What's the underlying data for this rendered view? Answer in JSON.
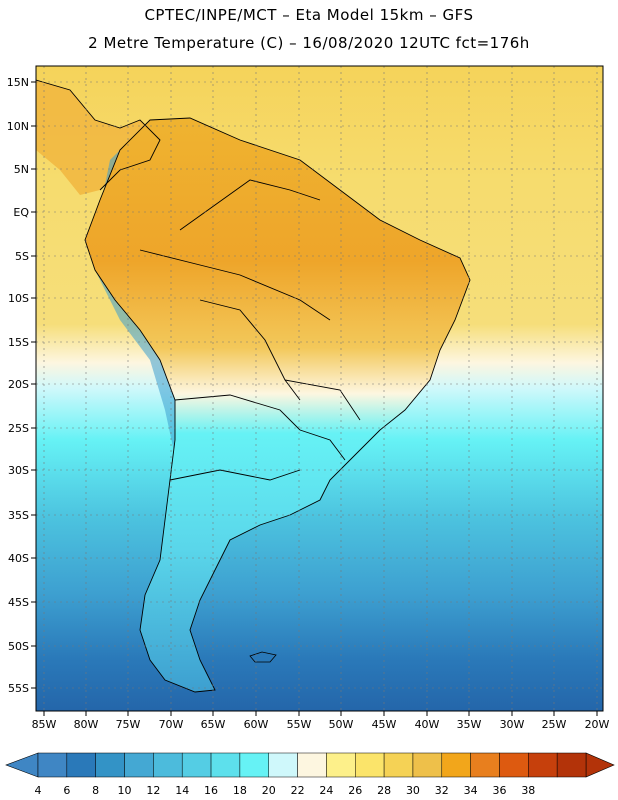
{
  "header": {
    "line1": "CPTEC/INPE/MCT –  Eta Model 15km – GFS",
    "line2": "2 Metre Temperature (C) – 16/08/2020 12UTC fct=176h"
  },
  "map": {
    "lat_labels": [
      "15N",
      "10N",
      "5N",
      "EQ",
      "5S",
      "10S",
      "15S",
      "20S",
      "25S",
      "30S",
      "35S",
      "40S",
      "45S",
      "50S",
      "55S"
    ],
    "lon_labels": [
      "85W",
      "80W",
      "75W",
      "70W",
      "65W",
      "60W",
      "55W",
      "50W",
      "45W",
      "40W",
      "35W",
      "30W",
      "25W",
      "20W"
    ],
    "ocean_color": "#4fd7e6",
    "land_color": "#f2c450"
  },
  "legend": {
    "values": [
      "4",
      "6",
      "8",
      "10",
      "12",
      "14",
      "16",
      "18",
      "20",
      "22",
      "24",
      "26",
      "28",
      "30",
      "32",
      "34",
      "36",
      "38"
    ],
    "colors": [
      "#3f86c4",
      "#2a79b9",
      "#3393c6",
      "#44a8d3",
      "#4cbbdc",
      "#54cde4",
      "#5de0ec",
      "#66f2f5",
      "#cff8fb",
      "#fdf6e0",
      "#fdf08a",
      "#fbe46a",
      "#f5d255",
      "#eec04a",
      "#f2a61b",
      "#e87f1e",
      "#dd5a10",
      "#c6400c",
      "#b33309"
    ]
  }
}
